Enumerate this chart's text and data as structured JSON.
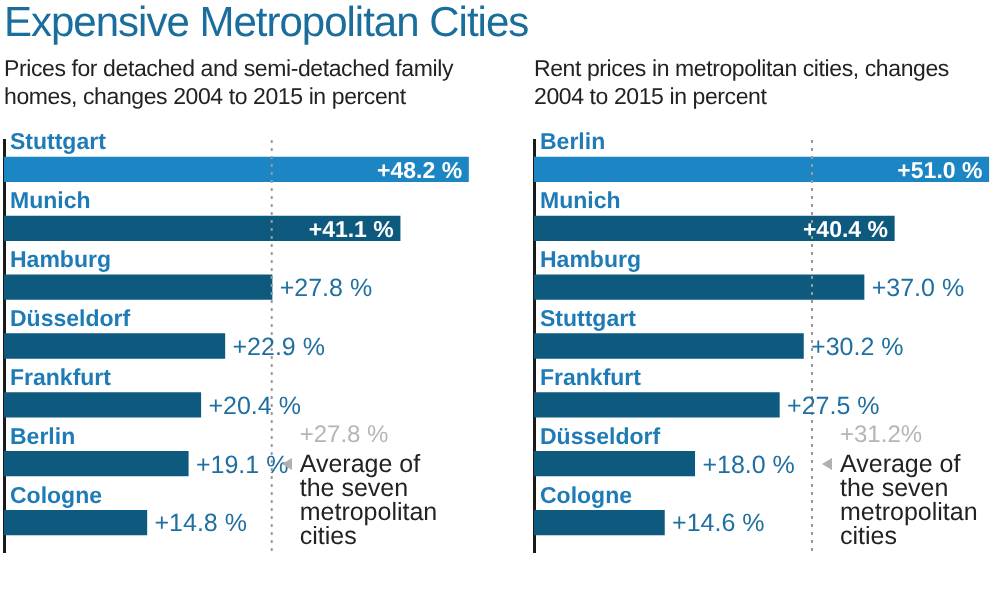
{
  "chart_data": [
    {
      "type": "bar",
      "orientation": "horizontal",
      "title": "Expensive Metropolitan Cities",
      "subtitle": "Prices for detached and semi-detached family homes, changes 2004 to 2015 in percent",
      "categories": [
        "Stuttgart",
        "Munich",
        "Hamburg",
        "Düsseldorf",
        "Frankfurt",
        "Berlin",
        "Cologne"
      ],
      "values": [
        48.2,
        41.1,
        27.8,
        22.9,
        20.4,
        19.1,
        14.8
      ],
      "colors": [
        "#1b86c3",
        "#0e5a7f",
        "#0e5a7f",
        "#0e5a7f",
        "#0e5a7f",
        "#0e5a7f",
        "#0e5a7f"
      ],
      "value_labels": [
        "+48.2 %",
        "+41.1 %",
        "+27.8 %",
        "+22.9 %",
        "+20.4 %",
        "+19.1 %",
        "+14.8 %"
      ],
      "xlim": [
        0,
        48.6
      ],
      "tick_labels": false,
      "legend": false,
      "ref_lines": [
        {
          "axis": "x",
          "value": 27.8,
          "label": "+27.8 %",
          "color": "#9a9a9a",
          "line_style": "dotted"
        }
      ],
      "annotations": [
        "Average of the seven metropolitan cities"
      ]
    },
    {
      "type": "bar",
      "orientation": "horizontal",
      "subtitle": "Rent prices in metropolitan cities, changes 2004 to 2015 in percent",
      "categories": [
        "Berlin",
        "Munich",
        "Hamburg",
        "Stuttgart",
        "Frankfurt",
        "Düsseldorf",
        "Cologne"
      ],
      "values": [
        51.0,
        40.4,
        37.0,
        30.2,
        27.5,
        18.0,
        14.6
      ],
      "colors": [
        "#1b86c3",
        "#0e5a7f",
        "#0e5a7f",
        "#0e5a7f",
        "#0e5a7f",
        "#0e5a7f",
        "#0e5a7f"
      ],
      "value_labels": [
        "+51.0 %",
        "+40.4 %",
        "+37.0 %",
        "+30.2 %",
        "+27.5 %",
        "+18.0 %",
        "+14.6 %"
      ],
      "xlim": [
        0,
        51.4
      ],
      "tick_labels": false,
      "legend": false,
      "ref_lines": [
        {
          "axis": "x",
          "value": 31.2,
          "label": "+31.2%",
          "color": "#9a9a9a",
          "line_style": "dotted"
        }
      ],
      "annotations": [
        "Average of the seven metropolitan cities"
      ]
    }
  ]
}
